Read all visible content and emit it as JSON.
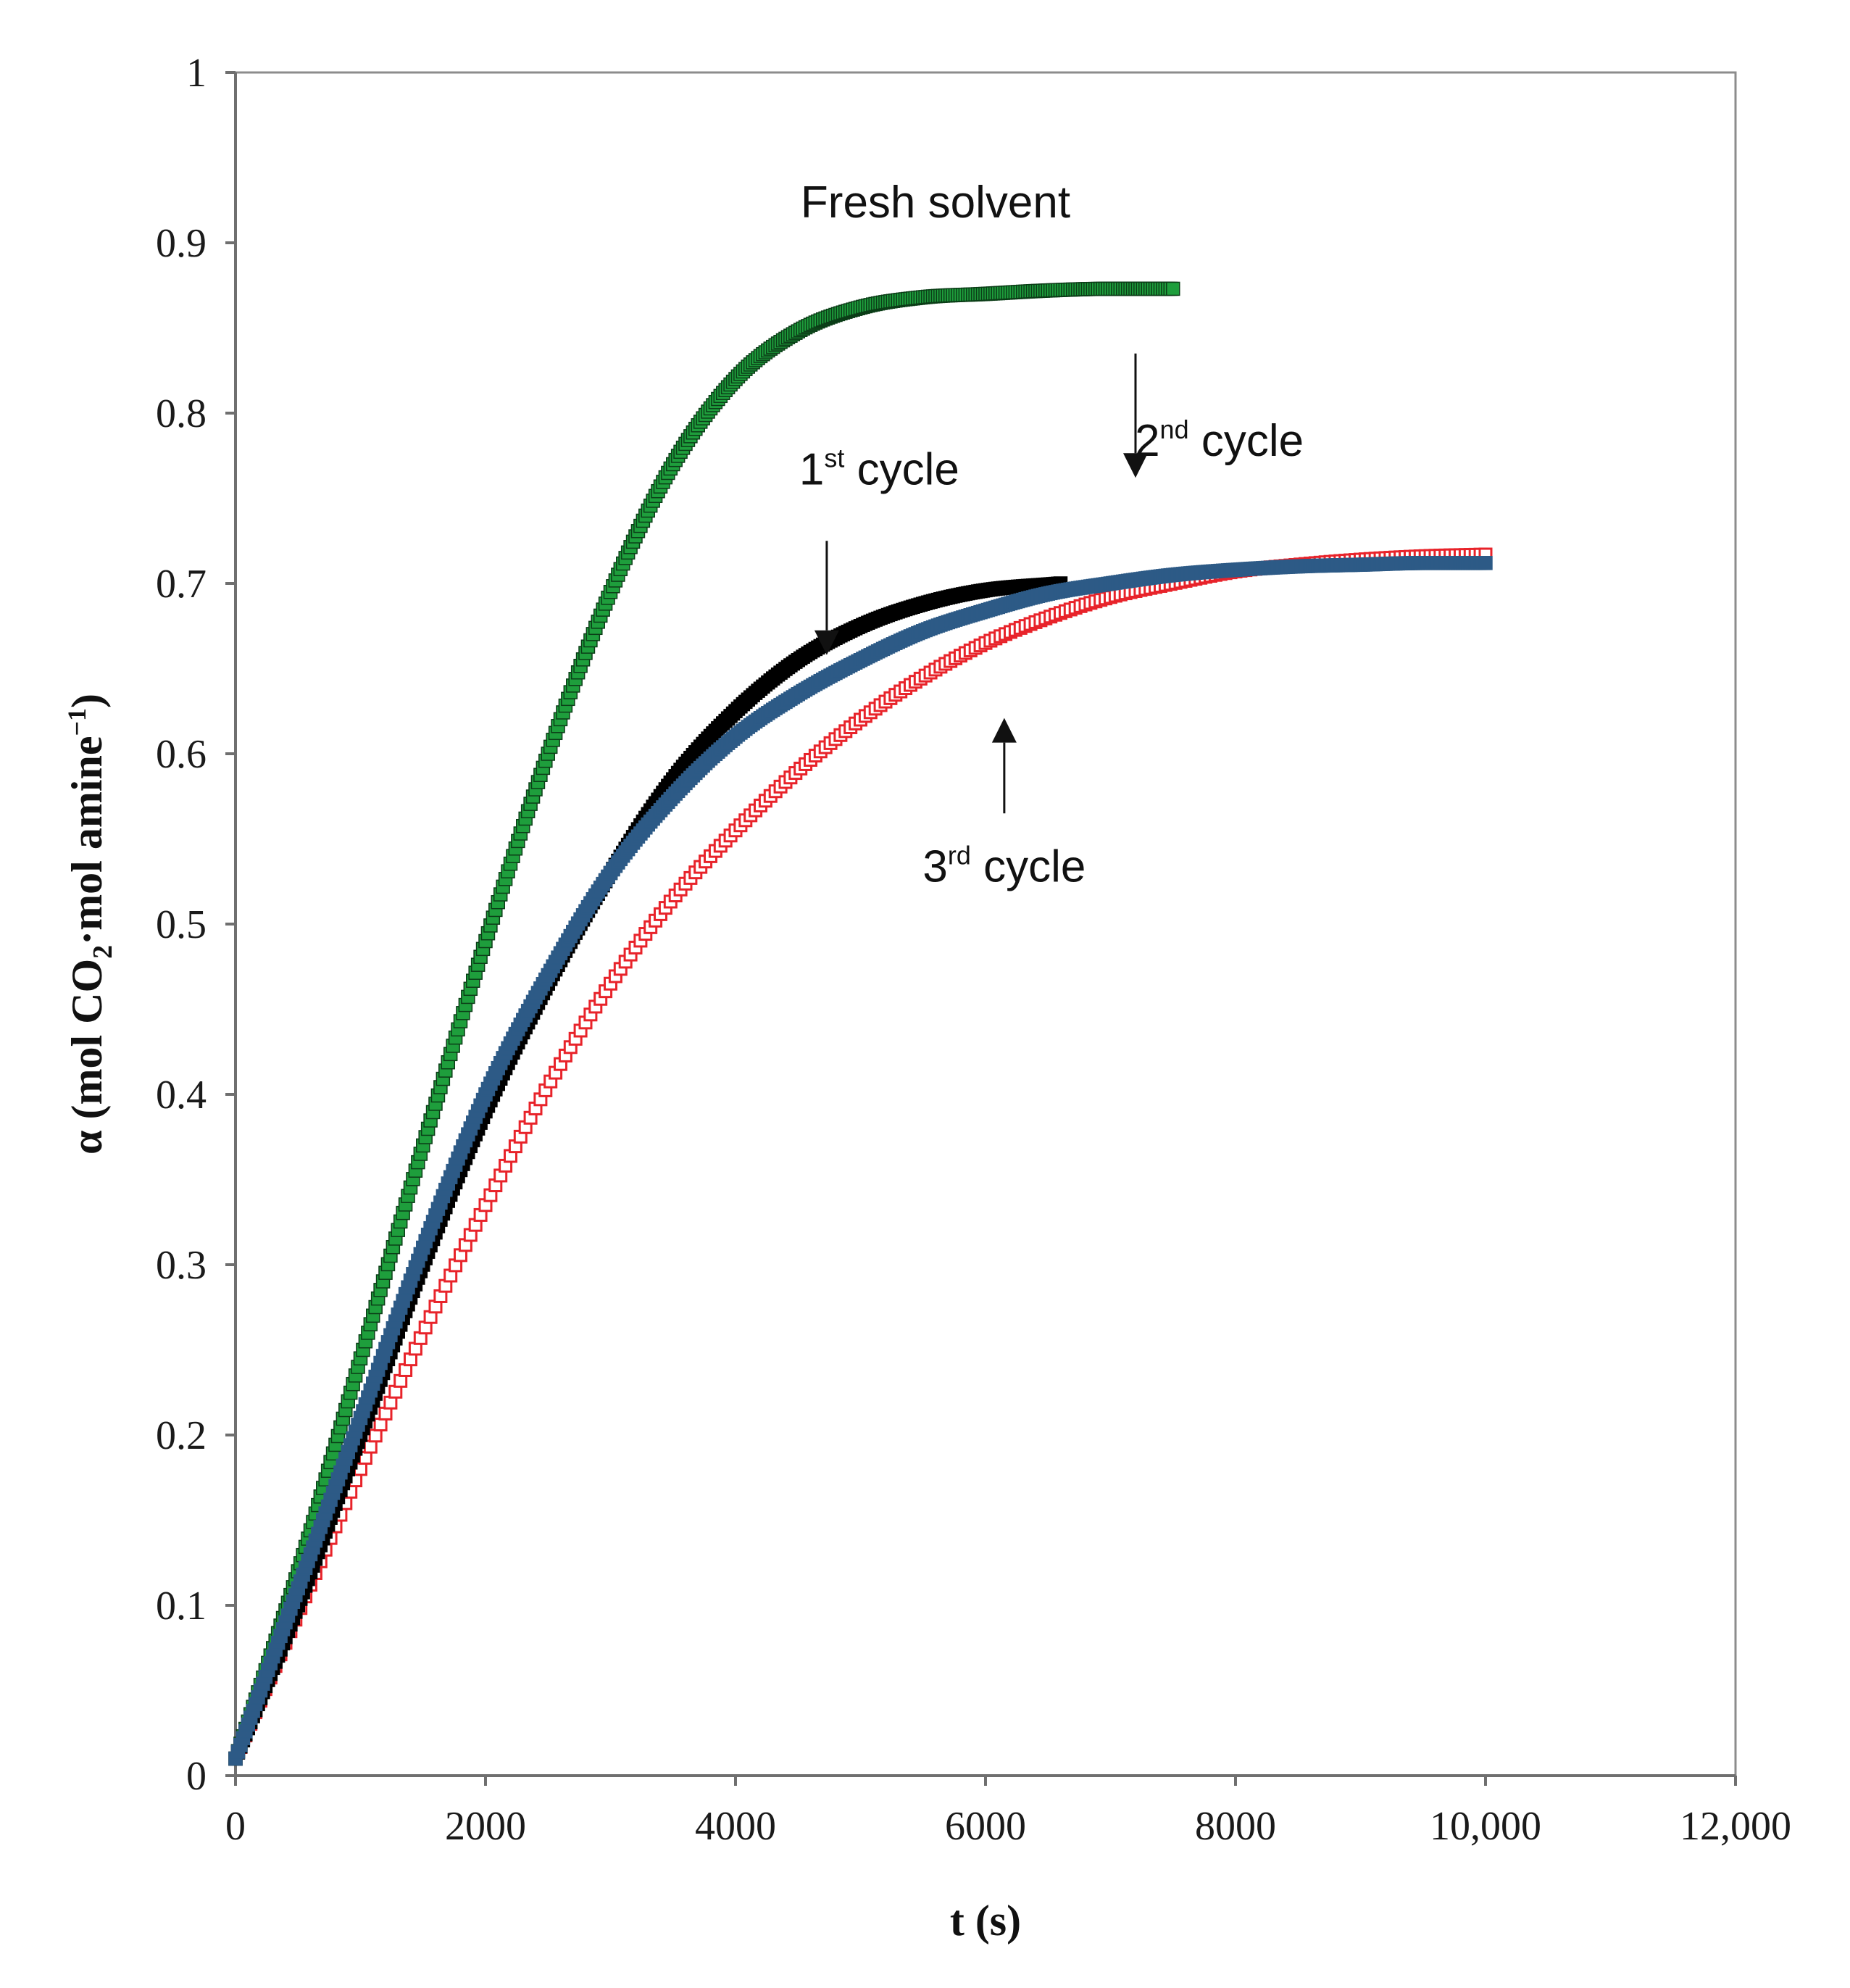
{
  "chart_data": {
    "type": "scatter",
    "title": "",
    "xlabel": "t (s)",
    "ylabel": {
      "pre": "α (mol CO",
      "sub": "2",
      "mid": "·mol amine",
      "sup": "−1",
      "post": ")"
    },
    "xlim": [
      0,
      12000
    ],
    "ylim": [
      0,
      1
    ],
    "grid": false,
    "x_ticks": [
      0,
      2000,
      4000,
      6000,
      8000,
      10000,
      12000
    ],
    "x_tick_labels": [
      "0",
      "2000",
      "4000",
      "6000",
      "8000",
      "10,000",
      "12,000"
    ],
    "y_ticks": [
      0,
      0.1,
      0.2,
      0.3,
      0.4,
      0.5,
      0.6,
      0.7,
      0.8,
      0.9,
      1
    ],
    "y_tick_labels": [
      "0",
      "0.1",
      "0.2",
      "0.3",
      "0.4",
      "0.5",
      "0.6",
      "0.7",
      "0.8",
      "0.9",
      "1"
    ],
    "series": [
      {
        "name": "Fresh solvent",
        "color": "#1e9e3c",
        "marker": "filled-dense",
        "x": [
          0,
          500,
          1000,
          1500,
          2000,
          2500,
          3000,
          3500,
          4000,
          4500,
          5000,
          5500,
          6000,
          6500,
          7000,
          7500
        ],
        "y": [
          0.01,
          0.12,
          0.245,
          0.37,
          0.49,
          0.6,
          0.695,
          0.77,
          0.82,
          0.848,
          0.862,
          0.868,
          0.87,
          0.872,
          0.873,
          0.873
        ]
      },
      {
        "name": "1st cycle",
        "color": "#000000",
        "marker": "filled-dense",
        "x": [
          0,
          500,
          1000,
          1500,
          2000,
          2500,
          3000,
          3500,
          4000,
          4500,
          5000,
          5500,
          6000,
          6600
        ],
        "y": [
          0.01,
          0.1,
          0.2,
          0.3,
          0.39,
          0.465,
          0.53,
          0.585,
          0.625,
          0.655,
          0.675,
          0.688,
          0.696,
          0.7
        ]
      },
      {
        "name": "2nd cycle",
        "color": "#2d5a86",
        "marker": "filled-dense",
        "x": [
          0,
          500,
          1000,
          1500,
          2000,
          2500,
          3000,
          3500,
          4000,
          4500,
          5000,
          5500,
          6000,
          6500,
          7000,
          7500,
          8000,
          8500,
          9000,
          9500,
          10000
        ],
        "y": [
          0.01,
          0.11,
          0.21,
          0.31,
          0.4,
          0.47,
          0.53,
          0.575,
          0.61,
          0.635,
          0.655,
          0.672,
          0.684,
          0.694,
          0.7,
          0.705,
          0.708,
          0.71,
          0.711,
          0.712,
          0.712
        ]
      },
      {
        "name": "3rd cycle",
        "color": "#e8232a",
        "marker": "open-square",
        "x": [
          0,
          500,
          1000,
          1500,
          2000,
          2500,
          3000,
          3500,
          4000,
          4500,
          5000,
          5500,
          6000,
          6500,
          7000,
          7500,
          8000,
          8500,
          9000,
          9500,
          10000
        ],
        "y": [
          0.01,
          0.095,
          0.18,
          0.26,
          0.335,
          0.405,
          0.465,
          0.515,
          0.555,
          0.59,
          0.62,
          0.645,
          0.665,
          0.68,
          0.692,
          0.7,
          0.707,
          0.711,
          0.714,
          0.716,
          0.717
        ]
      }
    ],
    "annotations": [
      {
        "text": "Fresh solvent",
        "sup": "",
        "after": "",
        "x": 5600,
        "y": 0.915,
        "arrow": null
      },
      {
        "text": "1",
        "sup": "st",
        "after": " cycle",
        "x": 5150,
        "y": 0.758,
        "arrow": {
          "from": [
            4730,
            0.725
          ],
          "to": [
            4730,
            0.658
          ]
        }
      },
      {
        "text": "2",
        "sup": "nd",
        "after": " cycle",
        "x": 7870,
        "y": 0.775,
        "arrow": {
          "from": [
            7200,
            0.835
          ],
          "to": [
            7200,
            0.762
          ]
        }
      },
      {
        "text": "3",
        "sup": "rd",
        "after": " cycle",
        "x": 6150,
        "y": 0.525,
        "arrow": {
          "from": [
            6150,
            0.565
          ],
          "to": [
            6150,
            0.621
          ]
        }
      }
    ]
  }
}
